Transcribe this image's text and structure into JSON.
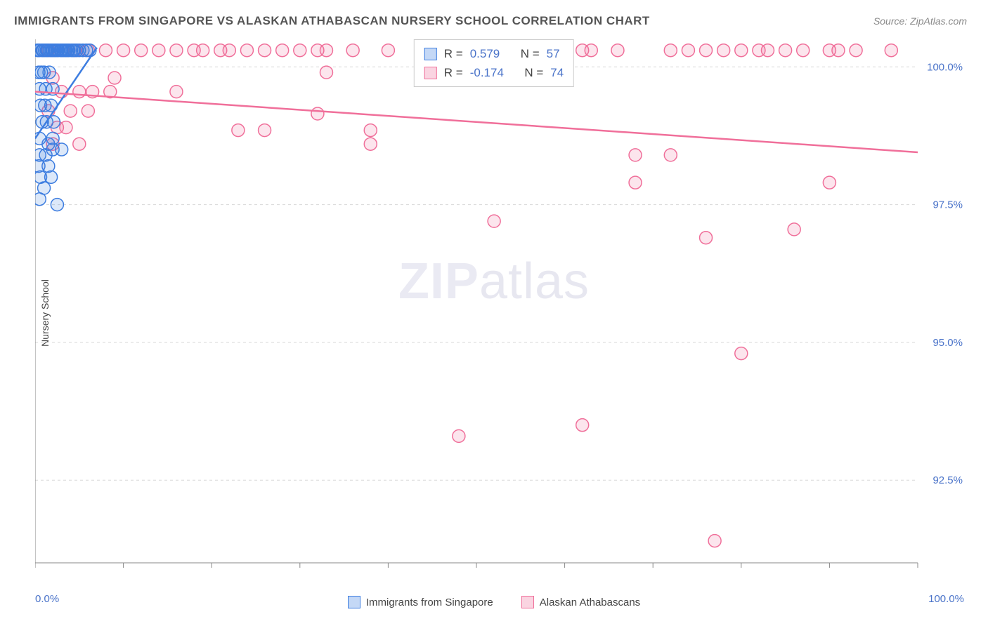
{
  "title": "IMMIGRANTS FROM SINGAPORE VS ALASKAN ATHABASCAN NURSERY SCHOOL CORRELATION CHART",
  "source_prefix": "Source: ",
  "source_name": "ZipAtlas.com",
  "watermark": {
    "zip": "ZIP",
    "atlas": "atlas"
  },
  "y_axis_label": "Nursery School",
  "chart": {
    "type": "scatter",
    "xlim": [
      0,
      100
    ],
    "ylim": [
      91,
      100.5
    ],
    "x_ticks": [
      0,
      10,
      20,
      30,
      40,
      50,
      60,
      70,
      80,
      90,
      100
    ],
    "x_tick_labels": {
      "0": "0.0%",
      "100": "100.0%"
    },
    "y_ticks": [
      92.5,
      95.0,
      97.5,
      100.0
    ],
    "y_tick_labels": [
      "92.5%",
      "95.0%",
      "97.5%",
      "100.0%"
    ],
    "grid_color": "#d8d8d8",
    "axis_color": "#888888",
    "background_color": "#ffffff",
    "marker_radius": 9,
    "marker_stroke_width": 1.5,
    "marker_fill_opacity": 0.18,
    "trend_line_width": 2.5,
    "label_fontsize": 15,
    "label_color": "#4a73c9"
  },
  "series": [
    {
      "name": "Immigrants from Singapore",
      "color": "#3d7de0",
      "fill": "#3d7de0",
      "R_label": "R =",
      "R": "0.579",
      "N_label": "N =",
      "N": "57",
      "trend": {
        "x1": 0,
        "y1": 98.7,
        "x2": 7,
        "y2": 100.35
      },
      "points": [
        [
          0.3,
          100.3
        ],
        [
          0.5,
          100.3
        ],
        [
          0.8,
          100.3
        ],
        [
          1.1,
          100.3
        ],
        [
          1.4,
          100.3
        ],
        [
          1.7,
          100.3
        ],
        [
          2.0,
          100.3
        ],
        [
          2.3,
          100.3
        ],
        [
          2.6,
          100.3
        ],
        [
          2.9,
          100.3
        ],
        [
          3.2,
          100.3
        ],
        [
          3.5,
          100.3
        ],
        [
          3.8,
          100.3
        ],
        [
          4.1,
          100.3
        ],
        [
          4.4,
          100.3
        ],
        [
          4.7,
          100.3
        ],
        [
          5.0,
          100.3
        ],
        [
          5.4,
          100.3
        ],
        [
          5.8,
          100.3
        ],
        [
          6.2,
          100.3
        ],
        [
          0.4,
          99.9
        ],
        [
          0.7,
          99.9
        ],
        [
          1.0,
          99.9
        ],
        [
          1.6,
          99.9
        ],
        [
          0.5,
          99.6
        ],
        [
          1.2,
          99.6
        ],
        [
          2.0,
          99.6
        ],
        [
          0.6,
          99.3
        ],
        [
          1.1,
          99.3
        ],
        [
          1.8,
          99.3
        ],
        [
          0.8,
          99.0
        ],
        [
          1.3,
          99.0
        ],
        [
          2.1,
          99.0
        ],
        [
          0.5,
          98.7
        ],
        [
          1.5,
          98.6
        ],
        [
          2.0,
          98.7
        ],
        [
          0.5,
          98.4
        ],
        [
          1.2,
          98.4
        ],
        [
          2.0,
          98.5
        ],
        [
          3.0,
          98.5
        ],
        [
          0.4,
          98.2
        ],
        [
          1.5,
          98.2
        ],
        [
          0.6,
          98.0
        ],
        [
          1.8,
          98.0
        ],
        [
          1.0,
          97.8
        ],
        [
          0.5,
          97.6
        ],
        [
          2.5,
          97.5
        ],
        [
          0.3,
          100.3
        ],
        [
          0.9,
          100.3
        ],
        [
          1.3,
          100.3
        ],
        [
          1.9,
          100.3
        ],
        [
          2.2,
          100.3
        ],
        [
          2.5,
          100.3
        ],
        [
          3.0,
          100.3
        ],
        [
          3.4,
          100.3
        ],
        [
          3.7,
          100.3
        ],
        [
          4.3,
          100.3
        ]
      ]
    },
    {
      "name": "Alaskan Athabascans",
      "color": "#f06f9a",
      "fill": "#f06f9a",
      "R_label": "R =",
      "R": "-0.174",
      "N_label": "N =",
      "N": "74",
      "trend": {
        "x1": 0,
        "y1": 99.55,
        "x2": 100,
        "y2": 98.45
      },
      "points": [
        [
          1.5,
          100.3
        ],
        [
          3,
          100.3
        ],
        [
          4.5,
          100.3
        ],
        [
          6,
          100.3
        ],
        [
          8,
          100.3
        ],
        [
          10,
          100.3
        ],
        [
          12,
          100.3
        ],
        [
          14,
          100.3
        ],
        [
          16,
          100.3
        ],
        [
          18,
          100.3
        ],
        [
          19,
          100.3
        ],
        [
          21,
          100.3
        ],
        [
          22,
          100.3
        ],
        [
          24,
          100.3
        ],
        [
          26,
          100.3
        ],
        [
          28,
          100.3
        ],
        [
          30,
          100.3
        ],
        [
          32,
          100.3
        ],
        [
          33,
          100.3
        ],
        [
          36,
          100.3
        ],
        [
          40,
          100.3
        ],
        [
          44,
          100.3
        ],
        [
          46,
          100.3
        ],
        [
          48,
          100.3
        ],
        [
          50,
          100.3
        ],
        [
          52,
          100.3
        ],
        [
          58,
          100.3
        ],
        [
          62,
          100.3
        ],
        [
          63,
          100.3
        ],
        [
          66,
          100.3
        ],
        [
          72,
          100.3
        ],
        [
          74,
          100.3
        ],
        [
          76,
          100.3
        ],
        [
          78,
          100.3
        ],
        [
          80,
          100.3
        ],
        [
          82,
          100.3
        ],
        [
          83,
          100.3
        ],
        [
          85,
          100.3
        ],
        [
          87,
          100.3
        ],
        [
          90,
          100.3
        ],
        [
          91,
          100.3
        ],
        [
          93,
          100.3
        ],
        [
          97,
          100.3
        ],
        [
          2,
          99.8
        ],
        [
          9,
          99.8
        ],
        [
          33,
          99.9
        ],
        [
          3,
          99.55
        ],
        [
          5,
          99.55
        ],
        [
          6.5,
          99.55
        ],
        [
          8.5,
          99.55
        ],
        [
          16,
          99.55
        ],
        [
          1.5,
          99.2
        ],
        [
          4,
          99.2
        ],
        [
          6,
          99.2
        ],
        [
          32,
          99.15
        ],
        [
          2.5,
          98.9
        ],
        [
          3.5,
          98.9
        ],
        [
          23,
          98.85
        ],
        [
          26,
          98.85
        ],
        [
          38,
          98.85
        ],
        [
          2,
          98.6
        ],
        [
          5,
          98.6
        ],
        [
          38,
          98.6
        ],
        [
          68,
          98.4
        ],
        [
          72,
          98.4
        ],
        [
          68,
          97.9
        ],
        [
          90,
          97.9
        ],
        [
          52,
          97.2
        ],
        [
          76,
          96.9
        ],
        [
          86,
          97.05
        ],
        [
          80,
          94.8
        ],
        [
          48,
          93.3
        ],
        [
          62,
          93.5
        ],
        [
          77,
          91.4
        ]
      ]
    }
  ]
}
